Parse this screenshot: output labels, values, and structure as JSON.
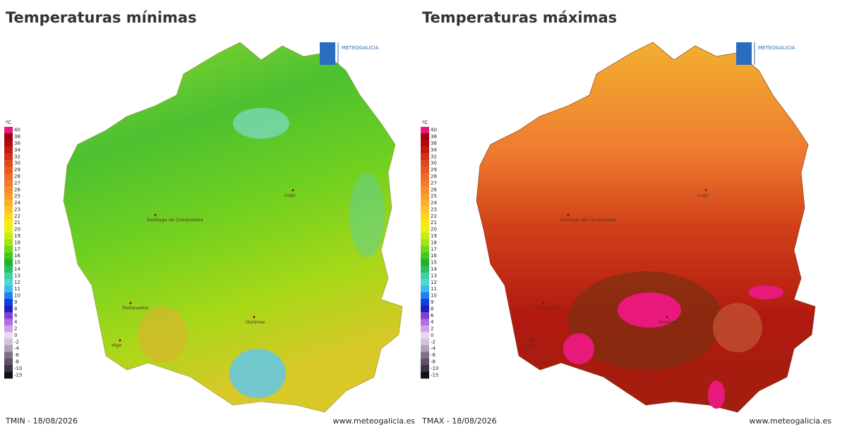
{
  "maps": [
    {
      "title": "Temperaturas mínimas",
      "footer_left": "TMIN - 18/08/2026",
      "footer_right": "www.meteogalicia.es",
      "logo": "METEOGALICIA",
      "cities": [
        "Santiago de Compostela",
        "Lugo",
        "Pontevedra",
        "Ourense",
        "Vigo"
      ]
    },
    {
      "title": "Temperaturas máximas",
      "footer_left": "TMAX - 18/08/2026",
      "footer_right": "www.meteogalicia.es",
      "logo": "METEOGALICIA",
      "cities": [
        "Santiago de Compostela",
        "Lugo",
        "Pontevedra",
        "Ourense",
        "Vigo"
      ]
    }
  ],
  "legend": {
    "unit": "ºC",
    "levels": [
      40,
      38,
      36,
      34,
      32,
      30,
      29,
      28,
      27,
      26,
      25,
      24,
      23,
      22,
      21,
      20,
      19,
      18,
      17,
      16,
      15,
      14,
      13,
      12,
      11,
      10,
      9,
      8,
      6,
      4,
      2,
      0,
      -2,
      -4,
      -6,
      -8,
      -10,
      -15
    ],
    "colors": [
      "#e8197a",
      "#a00010",
      "#b00c10",
      "#c41a10",
      "#d2301a",
      "#de4a20",
      "#e65a22",
      "#ee6c26",
      "#f27c2a",
      "#f68c2c",
      "#f89e2c",
      "#fab02a",
      "#fcc428",
      "#fcd820",
      "#f8e818",
      "#e8f014",
      "#c8ec14",
      "#a0e414",
      "#70d818",
      "#40c820",
      "#20b030",
      "#28c060",
      "#40d0a0",
      "#50d8d0",
      "#40b8f0",
      "#2080f0",
      "#1040e0",
      "#2020c0",
      "#8040d0",
      "#b070e0",
      "#d0a0f0",
      "#e8d8f0",
      "#d0c0d8",
      "#b0a0b8",
      "#807088",
      "#605068",
      "#403048",
      "#101010"
    ]
  }
}
